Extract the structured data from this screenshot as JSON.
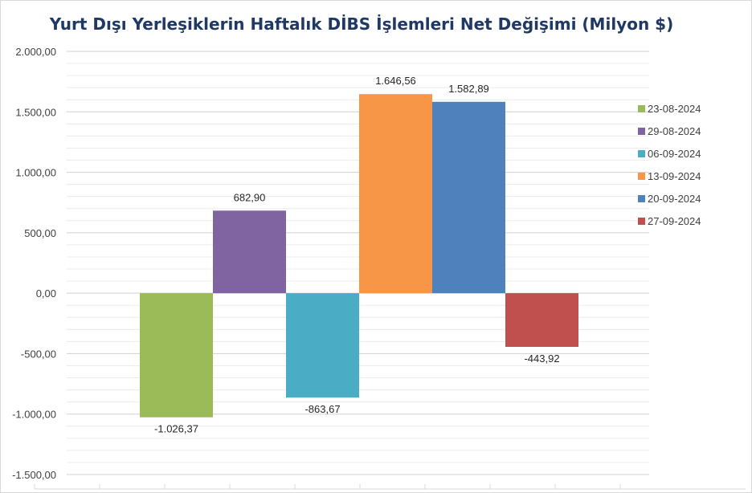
{
  "chart_data": {
    "type": "bar",
    "title": "Yurt Dışı Yerleşiklerin Haftalık DİBS İşlemleri Net Değişimi (Milyon $)",
    "ylim": [
      -1500,
      2000
    ],
    "y_tick_labels": [
      "2.000,00",
      "1.500,00",
      "1.000,00",
      "500,00",
      "0,00",
      "-500,00",
      "-1.000,00",
      "-1.500,00"
    ],
    "y_tick_values": [
      2000,
      1500,
      1000,
      500,
      0,
      -500,
      -1000,
      -1500
    ],
    "grid": true,
    "legend_position": "right",
    "series": [
      {
        "name": "23-08-2024",
        "value": -1026.37,
        "label": "-1.026,37",
        "color": "#9bbb59"
      },
      {
        "name": "29-08-2024",
        "value": 682.9,
        "label": "682,90",
        "color": "#8064a2"
      },
      {
        "name": "06-09-2024",
        "value": -863.67,
        "label": "-863,67",
        "color": "#4bacc6"
      },
      {
        "name": "13-09-2024",
        "value": 1646.56,
        "label": "1.646,56",
        "color": "#f79646"
      },
      {
        "name": "20-09-2024",
        "value": 1582.89,
        "label": "1.582,89",
        "color": "#4f81bd"
      },
      {
        "name": "27-09-2024",
        "value": -443.92,
        "label": "-443,92",
        "color": "#c0504d"
      }
    ]
  }
}
